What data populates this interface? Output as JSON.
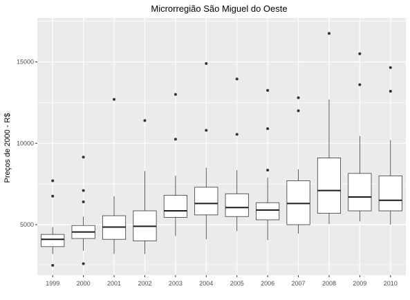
{
  "chart_data": {
    "type": "boxplot",
    "title": "Microrregião  São Miguel do Oeste",
    "xlabel": "",
    "ylabel": "Preços de 2000 - R$",
    "ylim": [
      1900,
      17700
    ],
    "yticks": [
      5000,
      10000,
      15000
    ],
    "ytick_labels": [
      "5000",
      "10000",
      "15000"
    ],
    "grid": true,
    "background_color": "#ebebeb",
    "grid_color": "#ffffff",
    "categories": [
      "1999",
      "2000",
      "2001",
      "2002",
      "2003",
      "2004",
      "2005",
      "2006",
      "2007",
      "2008",
      "2009",
      "2010"
    ],
    "boxes": [
      {
        "category": "1999",
        "whisker_low": 3200,
        "q1": 3650,
        "median": 4100,
        "q3": 4400,
        "whisker_high": 4850,
        "outliers": [
          7700,
          6750,
          2500
        ]
      },
      {
        "category": "2000",
        "whisker_low": 3400,
        "q1": 4150,
        "median": 4550,
        "q3": 4950,
        "whisker_high": 5500,
        "outliers": [
          9150,
          7100,
          6400,
          2600
        ]
      },
      {
        "category": "2001",
        "whisker_low": 3200,
        "q1": 4100,
        "median": 4850,
        "q3": 5550,
        "whisker_high": 6750,
        "outliers": [
          12700
        ]
      },
      {
        "category": "2002",
        "whisker_low": 3200,
        "q1": 4000,
        "median": 4900,
        "q3": 5850,
        "whisker_high": 8300,
        "outliers": [
          11400
        ]
      },
      {
        "category": "2003",
        "whisker_low": 4300,
        "q1": 5450,
        "median": 5850,
        "q3": 6800,
        "whisker_high": 8000,
        "outliers": [
          13000,
          10250
        ]
      },
      {
        "category": "2004",
        "whisker_low": 4100,
        "q1": 5600,
        "median": 6300,
        "q3": 7300,
        "whisker_high": 8500,
        "outliers": [
          14900,
          10800
        ]
      },
      {
        "category": "2005",
        "whisker_low": 4600,
        "q1": 5500,
        "median": 6050,
        "q3": 6900,
        "whisker_high": 8350,
        "outliers": [
          13950,
          10550
        ]
      },
      {
        "category": "2006",
        "whisker_low": 4050,
        "q1": 5300,
        "median": 5900,
        "q3": 6350,
        "whisker_high": 7900,
        "outliers": [
          13250,
          10900,
          8350
        ]
      },
      {
        "category": "2007",
        "whisker_low": 4450,
        "q1": 5000,
        "median": 6300,
        "q3": 7700,
        "whisker_high": 8400,
        "outliers": [
          12800,
          12000
        ]
      },
      {
        "category": "2008",
        "whisker_low": 5050,
        "q1": 5700,
        "median": 7100,
        "q3": 9100,
        "whisker_high": 12700,
        "outliers": [
          16750
        ]
      },
      {
        "category": "2009",
        "whisker_low": 5200,
        "q1": 5850,
        "median": 6700,
        "q3": 8150,
        "whisker_high": 10450,
        "outliers": [
          15500,
          13600
        ]
      },
      {
        "category": "2010",
        "whisker_low": 5000,
        "q1": 5850,
        "median": 6500,
        "q3": 8000,
        "whisker_high": 10200,
        "outliers": [
          14650,
          13200
        ]
      }
    ]
  }
}
